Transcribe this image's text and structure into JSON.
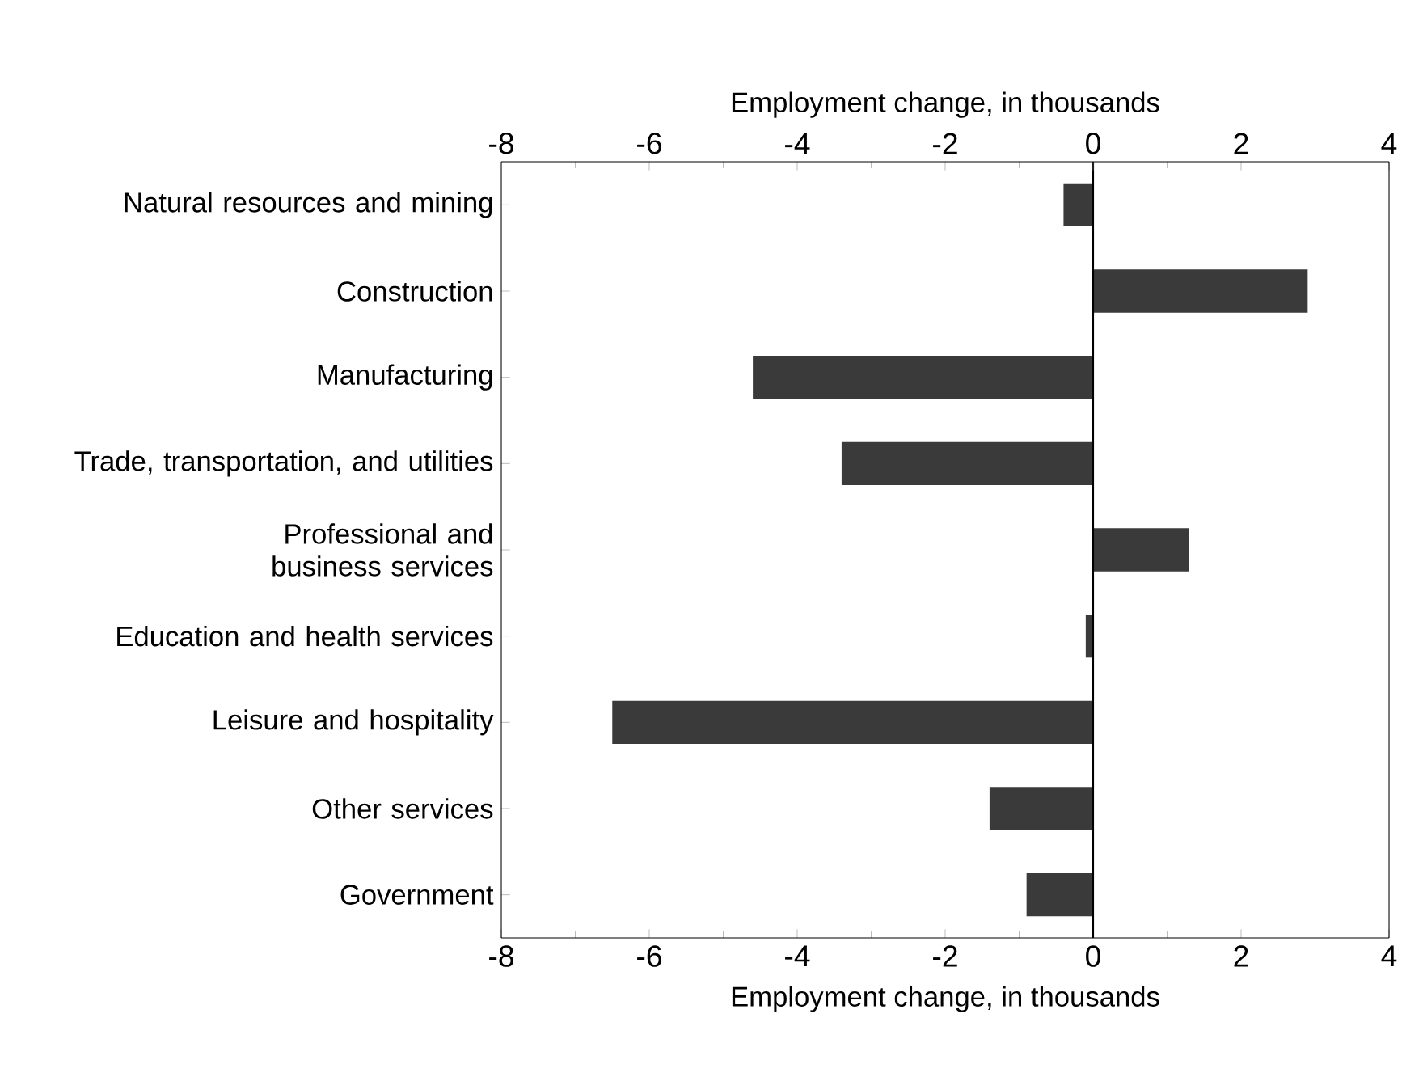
{
  "chart_data": {
    "type": "bar",
    "orientation": "horizontal",
    "xlabel": "Employment change, in thousands",
    "x2label": "Employment change, in thousands",
    "categories": [
      "Natural resources and mining",
      "Construction",
      "Manufacturing",
      "Trade, transportation, and utilities",
      "Professional and business services",
      "Education and health services",
      "Leisure and hospitality",
      "Other services",
      "Government"
    ],
    "values": [
      -0.4,
      2.9,
      -4.6,
      -3.4,
      1.3,
      -0.1,
      -6.5,
      -1.4,
      -0.9
    ],
    "color": "#3a3a3a",
    "xlim": [
      -8,
      4
    ],
    "xticks": [
      -8,
      -6,
      -4,
      -2,
      0,
      2,
      4
    ],
    "x2lim": [
      -8,
      4
    ],
    "x2ticks": [
      -8,
      -6,
      -4,
      -2,
      0,
      2,
      4
    ],
    "ref_lines": [
      {
        "axis": "x",
        "value": 0
      }
    ],
    "grid": false
  }
}
